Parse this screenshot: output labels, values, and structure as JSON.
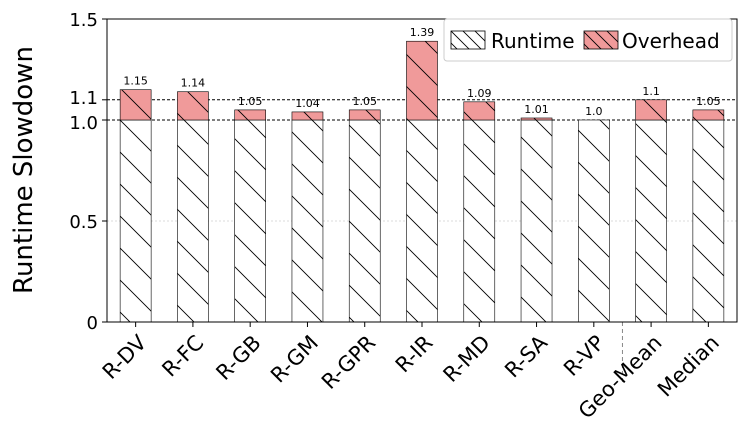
{
  "chart_data": {
    "type": "bar",
    "title": "",
    "xlabel": "",
    "ylabel": "Runtime Slowdown",
    "ylim": [
      0,
      1.5
    ],
    "yticks": [
      0,
      0.5,
      1.0,
      1.1,
      1.5
    ],
    "ytick_labels": [
      "0",
      "0.5",
      "1.0",
      "1.1",
      "1.5"
    ],
    "reference_lines": [
      1.0,
      1.1
    ],
    "grid": "horizontal dotted",
    "legend_position": "top-right",
    "categories": [
      "R-DV",
      "R-FC",
      "R-GB",
      "R-GM",
      "R-GPR",
      "R-IR",
      "R-MD",
      "R-SA",
      "R-VP",
      "Geo-Mean",
      "Median"
    ],
    "group_separator_after": "R-VP",
    "data_labels": [
      "1.15",
      "1.14",
      "1.05",
      "1.04",
      "1.05",
      "1.39",
      "1.09",
      "1.01",
      "1.0",
      "1.1",
      "1.05"
    ],
    "series": [
      {
        "name": "Runtime",
        "values": [
          1.0,
          1.0,
          1.0,
          1.0,
          1.0,
          1.0,
          1.0,
          1.0,
          1.0,
          1.0,
          1.0
        ],
        "color": "#ffffff",
        "hatch": "\\"
      },
      {
        "name": "Overhead",
        "values": [
          0.15,
          0.14,
          0.05,
          0.04,
          0.05,
          0.39,
          0.09,
          0.01,
          0.0,
          0.1,
          0.05
        ],
        "color": "#f09a9a",
        "hatch": "\\"
      }
    ]
  }
}
